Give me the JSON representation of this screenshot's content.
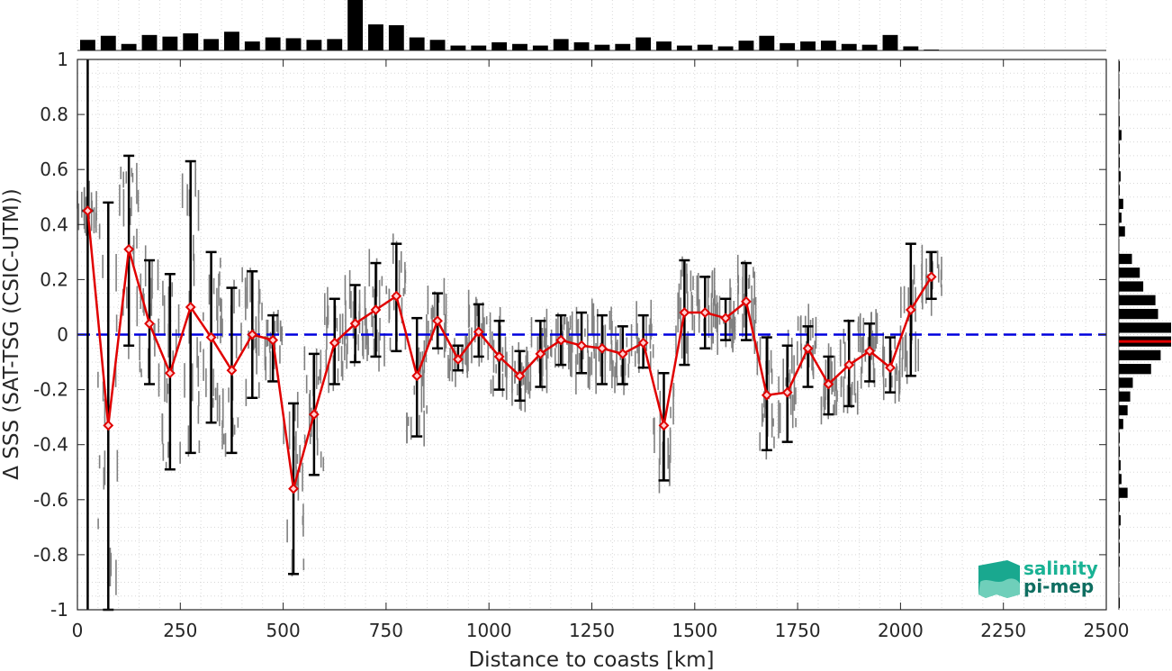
{
  "chart_data": {
    "type": "line",
    "title": "",
    "xlabel": "Distance to coasts [km]",
    "ylabel": "Δ SSS (SAT-TSG (CSIC-UTM))",
    "xlim": [
      0,
      2500
    ],
    "ylim": [
      -1,
      1
    ],
    "x_ticks": [
      "0",
      "250",
      "500",
      "750",
      "1000",
      "1250",
      "1500",
      "1750",
      "2000",
      "2250",
      "2500"
    ],
    "y_ticks": [
      "1",
      "0.8",
      "0.6",
      "0.4",
      "0.2",
      "0",
      "-0.2",
      "-0.4",
      "-0.6",
      "-0.8",
      "-1"
    ],
    "grid": true,
    "reference_line": {
      "y": 0,
      "style": "dashed",
      "color": "#0000dd"
    },
    "colors": {
      "mean_line": "#e00000",
      "error_bars": "#000000",
      "scatter": "#808080",
      "histograms": "#000000",
      "median_marker": "#e00000"
    },
    "series": [
      {
        "type": "line-with-error-bars",
        "x": [
          25,
          75,
          125,
          175,
          225,
          275,
          325,
          375,
          425,
          475,
          525,
          575,
          625,
          675,
          725,
          775,
          825,
          875,
          925,
          975,
          1025,
          1075,
          1125,
          1175,
          1225,
          1275,
          1325,
          1375,
          1425,
          1475,
          1525,
          1575,
          1625,
          1675,
          1725,
          1775,
          1825,
          1875,
          1925,
          1975,
          2025,
          2075
        ],
        "y": [
          0.45,
          -0.33,
          0.31,
          0.04,
          -0.14,
          0.1,
          -0.01,
          -0.13,
          0.0,
          -0.02,
          -0.56,
          -0.29,
          -0.03,
          0.04,
          0.09,
          0.14,
          -0.15,
          0.05,
          -0.09,
          0.01,
          -0.08,
          -0.15,
          -0.07,
          -0.02,
          -0.04,
          -0.05,
          -0.07,
          -0.03,
          -0.33,
          0.08,
          0.08,
          0.06,
          0.12,
          -0.22,
          -0.21,
          -0.05,
          -0.18,
          -0.11,
          -0.06,
          -0.12,
          0.09,
          0.21
        ],
        "err_low": [
          0.45,
          -1.0,
          -0.04,
          -0.18,
          -0.49,
          -0.43,
          -0.32,
          -0.43,
          -0.23,
          -0.17,
          -0.87,
          -0.51,
          -0.18,
          -0.1,
          -0.08,
          -0.06,
          -0.37,
          -0.05,
          -0.13,
          -0.08,
          -0.2,
          -0.24,
          -0.19,
          -0.11,
          -0.14,
          -0.18,
          -0.18,
          -0.12,
          -0.53,
          -0.11,
          -0.05,
          -0.02,
          -0.02,
          -0.42,
          -0.39,
          -0.19,
          -0.29,
          -0.26,
          -0.17,
          -0.21,
          -0.15,
          0.13
        ],
        "err_high": [
          0.45,
          0.48,
          0.65,
          0.27,
          0.22,
          0.63,
          0.3,
          0.17,
          0.23,
          0.07,
          -0.25,
          -0.07,
          0.13,
          0.18,
          0.26,
          0.33,
          0.06,
          0.15,
          -0.04,
          0.11,
          0.05,
          -0.06,
          0.05,
          0.07,
          0.08,
          0.07,
          0.03,
          0.07,
          -0.14,
          0.27,
          0.21,
          0.13,
          0.26,
          -0.01,
          -0.04,
          0.03,
          -0.08,
          0.05,
          0.04,
          -0.01,
          0.33,
          0.3
        ]
      }
    ],
    "top_histogram": {
      "bin_width": 50,
      "bin_starts": [
        0,
        50,
        100,
        150,
        200,
        250,
        300,
        350,
        400,
        450,
        500,
        550,
        600,
        650,
        700,
        750,
        800,
        850,
        900,
        950,
        1000,
        1050,
        1100,
        1150,
        1200,
        1250,
        1300,
        1350,
        1400,
        1450,
        1500,
        1550,
        1600,
        1650,
        1700,
        1750,
        1800,
        1850,
        1900,
        1950,
        2000,
        2050
      ],
      "counts": [
        13,
        18,
        8,
        19,
        17,
        21,
        14,
        23,
        11,
        16,
        15,
        13,
        14,
        62,
        32,
        31,
        16,
        13,
        6,
        6,
        10,
        8,
        6,
        14,
        10,
        7,
        8,
        16,
        11,
        6,
        7,
        5,
        12,
        18,
        9,
        11,
        12,
        8,
        7,
        19,
        5,
        1
      ]
    },
    "right_histogram": {
      "bin_width": 0.05,
      "bin_centers": [
        0.975,
        0.925,
        0.875,
        0.825,
        0.775,
        0.725,
        0.675,
        0.625,
        0.575,
        0.525,
        0.475,
        0.425,
        0.375,
        0.325,
        0.275,
        0.225,
        0.175,
        0.125,
        0.075,
        0.025,
        -0.025,
        -0.075,
        -0.125,
        -0.175,
        -0.225,
        -0.275,
        -0.325,
        -0.375,
        -0.425,
        -0.475,
        -0.525,
        -0.575,
        -0.625,
        -0.675,
        -0.725,
        -0.775,
        -0.825,
        -0.875,
        -0.925,
        -0.975
      ],
      "counts": [
        1,
        0,
        1,
        0,
        1,
        3,
        1,
        1,
        2,
        1,
        5,
        3,
        7,
        0,
        15,
        24,
        28,
        42,
        45,
        60,
        60,
        48,
        37,
        16,
        13,
        10,
        5,
        1,
        1,
        2,
        3,
        10,
        1,
        2,
        1,
        1,
        1,
        0,
        0,
        1
      ],
      "median": -0.025
    }
  },
  "logo": {
    "line1": "salinity",
    "line2": "pi-mep"
  }
}
